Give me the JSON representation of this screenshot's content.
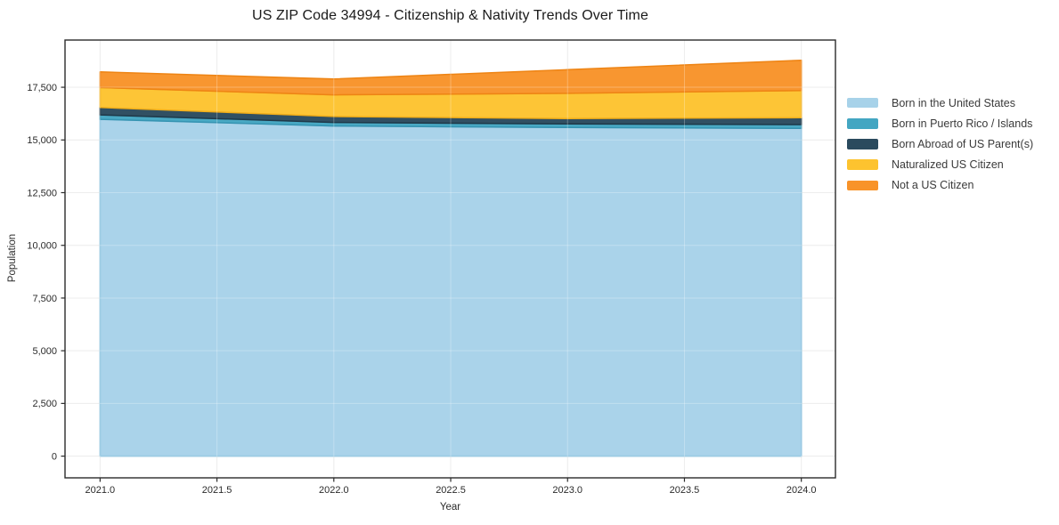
{
  "chart_data": {
    "type": "area",
    "stacked": true,
    "title": "US ZIP Code 34994 - Citizenship & Nativity Trends Over Time",
    "xlabel": "Year",
    "ylabel": "Population",
    "x": [
      2021,
      2022,
      2023,
      2024
    ],
    "series": [
      {
        "name": "Born in the United States",
        "color": "#A7D2E9",
        "edge_color": "#7FBCDB",
        "values": [
          15980,
          15660,
          15590,
          15550
        ]
      },
      {
        "name": "Born in Puerto Rico / Islands",
        "color": "#43A6C2",
        "edge_color": "#3694B2",
        "values": [
          210,
          170,
          170,
          180
        ]
      },
      {
        "name": "Born Abroad of US Parent(s)",
        "color": "#2A4A5E",
        "edge_color": "#1F3949",
        "values": [
          350,
          285,
          255,
          325
        ]
      },
      {
        "name": "Naturalized US Citizen",
        "color": "#FDC32F",
        "edge_color": "#F2AE19",
        "values": [
          945,
          1025,
          1195,
          1290
        ]
      },
      {
        "name": "Not a US Citizen",
        "color": "#F89329",
        "edge_color": "#EE8414",
        "values": [
          745,
          750,
          1125,
          1435
        ]
      }
    ],
    "totals": [
      18230,
      17890,
      18335,
      18780
    ],
    "xticks": [
      {
        "v": 2021.0,
        "label": "2021.0"
      },
      {
        "v": 2021.5,
        "label": "2021.5"
      },
      {
        "v": 2022.0,
        "label": "2022.0"
      },
      {
        "v": 2022.5,
        "label": "2022.5"
      },
      {
        "v": 2023.0,
        "label": "2023.0"
      },
      {
        "v": 2023.5,
        "label": "2023.5"
      },
      {
        "v": 2024.0,
        "label": "2024.0"
      }
    ],
    "yticks": [
      {
        "v": 0,
        "label": "0"
      },
      {
        "v": 2500,
        "label": "2,500"
      },
      {
        "v": 5000,
        "label": "5,000"
      },
      {
        "v": 7500,
        "label": "7,500"
      },
      {
        "v": 10000,
        "label": "10,000"
      },
      {
        "v": 12500,
        "label": "12,500"
      },
      {
        "v": 15000,
        "label": "15,000"
      },
      {
        "v": 17500,
        "label": "17,500"
      }
    ],
    "xlim": [
      2020.85,
      2024.146
    ],
    "ylim": [
      -1030,
      19740
    ],
    "grid": true,
    "legend_position": "right-outside",
    "colors": {
      "background": "#FFFFFF",
      "grid": "#E7E7E7",
      "spine": "#2B2B2B",
      "tick_label": "#2B2B2B",
      "title": "#1A1A1A",
      "legend_text": "#3A3A3A"
    }
  }
}
